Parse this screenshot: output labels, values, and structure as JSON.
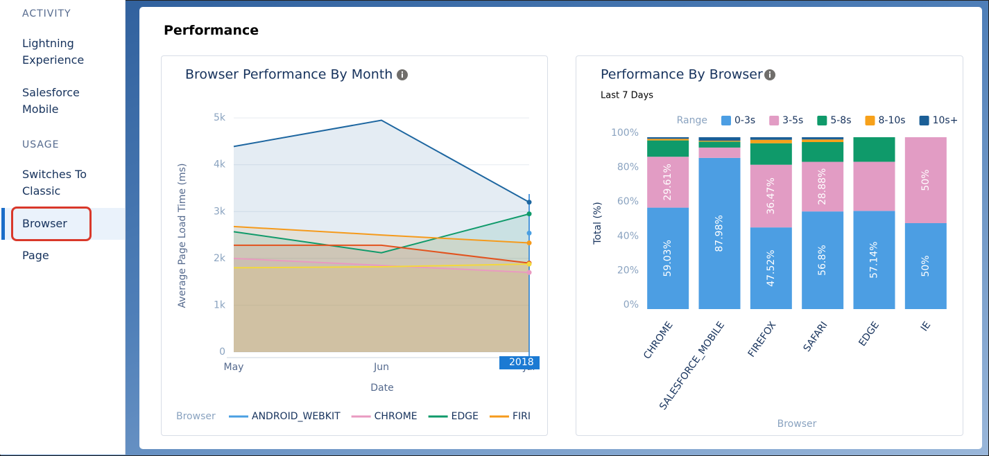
{
  "sidebar": {
    "sections": [
      {
        "heading": "ACTIVITY",
        "items": [
          "Lightning Experience",
          "Salesforce Mobile"
        ]
      },
      {
        "heading": "USAGE",
        "items": [
          "Switches To Classic",
          "Browser",
          "Page"
        ]
      }
    ]
  },
  "page_title": "Performance",
  "chart_data": [
    {
      "type": "line",
      "title": "Browser Performance By Month",
      "x_label": "Date",
      "y_label": "Average Page Load Time (ms)",
      "legend_title": "Browser",
      "tooltip": "2018",
      "categories": [
        "May",
        "Jun",
        "Jul"
      ],
      "ylim": [
        0,
        5150
      ],
      "yticks": [
        0,
        {
          "value": 1000,
          "label": "1k"
        },
        {
          "value": 2000,
          "label": "2k"
        },
        {
          "value": 3000,
          "label": "3k"
        },
        {
          "value": 4000,
          "label": "4k"
        },
        {
          "value": 5000,
          "label": "5k"
        }
      ],
      "grid": true,
      "series": [
        {
          "name": "ANDROID_WEBKIT",
          "color": "#4a9fe2",
          "values": [
            null,
            null,
            2540
          ]
        },
        {
          "name": "CHROME",
          "color": "#e99ac0",
          "values": [
            2000,
            1850,
            1700
          ]
        },
        {
          "name": "EDGE",
          "color": "#0f9a6a",
          "values": [
            2570,
            2120,
            2950
          ]
        },
        {
          "name": "FIRI",
          "color": "#f59a1b",
          "values": [
            2680,
            2500,
            2330
          ]
        },
        {
          "color": "#1d66a0",
          "values": [
            4390,
            4950,
            3200
          ]
        },
        {
          "color": "#e2521d",
          "values": [
            2280,
            2280,
            1900
          ]
        },
        {
          "color": "#f3d83c",
          "values": [
            1800,
            1820,
            1880
          ]
        }
      ]
    },
    {
      "type": "bar",
      "title": "Performance By Browser",
      "subtitle": "Last 7 Days",
      "x_label": "Browser",
      "y_label": "Total (%)",
      "legend_title": "Range",
      "categories": [
        "CHROME",
        "SALESFORCE_MOBILE",
        "FIREFOX",
        "SAFARI",
        "EDGE",
        "IE"
      ],
      "ylim": [
        0,
        100
      ],
      "yticks": [
        {
          "value": 0,
          "label": "0%"
        },
        {
          "value": 20,
          "label": "20%"
        },
        {
          "value": 40,
          "label": "40%"
        },
        {
          "value": 60,
          "label": "60%"
        },
        {
          "value": 80,
          "label": "80%"
        },
        {
          "value": 100,
          "label": "100%"
        }
      ],
      "series": [
        {
          "name": "0-3s",
          "color": "#4c9ee3",
          "values": [
            59.03,
            87.98,
            47.52,
            56.8,
            57.14,
            50
          ],
          "value_labels": [
            "59.03%",
            "87.98%",
            "47.52%",
            "56.8%",
            "57.14%",
            "50%"
          ]
        },
        {
          "name": "3-5s",
          "color": "#e29cc4",
          "values": [
            29.61,
            6,
            36.47,
            28.88,
            28.57,
            50
          ],
          "value_labels": [
            "29.61%",
            null,
            "36.47%",
            "28.88%",
            null,
            "50%"
          ]
        },
        {
          "name": "5-8s",
          "color": "#0f9a6a",
          "values": [
            9.5,
            3.5,
            12.5,
            11.5,
            14.29,
            0
          ]
        },
        {
          "name": "8-10s",
          "color": "#f7a11a",
          "values": [
            0.93,
            0.5,
            2,
            1.5,
            0,
            0
          ]
        },
        {
          "name": "10s+",
          "color": "#1b5f97",
          "values": [
            0.93,
            2.02,
            1.51,
            1.32,
            0,
            0
          ]
        }
      ]
    }
  ]
}
